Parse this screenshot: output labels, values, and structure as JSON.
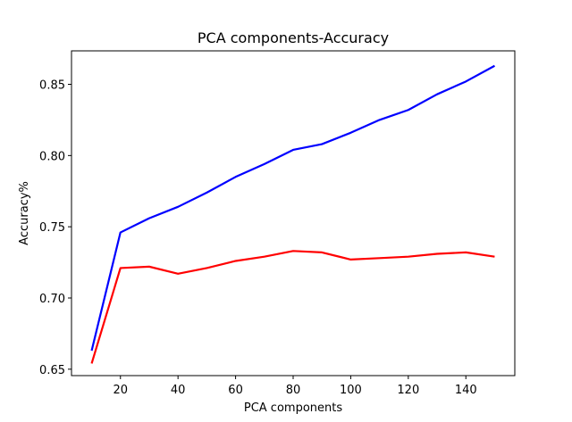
{
  "chart_data": {
    "type": "line",
    "title": "PCA components-Accuracy",
    "xlabel": "PCA components",
    "ylabel": "Accuracy%",
    "xlim": [
      3,
      157
    ],
    "ylim": [
      0.6455,
      0.8735
    ],
    "xticks": [
      20,
      40,
      60,
      80,
      100,
      120,
      140
    ],
    "xtick_labels": [
      "20",
      "40",
      "60",
      "80",
      "100",
      "120",
      "140"
    ],
    "yticks": [
      0.65,
      0.7,
      0.75,
      0.8,
      0.85
    ],
    "ytick_labels": [
      "0.65",
      "0.70",
      "0.75",
      "0.80",
      "0.85"
    ],
    "grid": false,
    "x": [
      10,
      20,
      30,
      40,
      50,
      60,
      70,
      80,
      90,
      100,
      110,
      120,
      130,
      140,
      150
    ],
    "series": [
      {
        "color": "#0000ff",
        "values": [
          0.663,
          0.746,
          0.756,
          0.764,
          0.774,
          0.785,
          0.794,
          0.804,
          0.808,
          0.816,
          0.825,
          0.832,
          0.843,
          0.852,
          0.863
        ]
      },
      {
        "color": "#ff0000",
        "values": [
          0.654,
          0.721,
          0.722,
          0.717,
          0.721,
          0.726,
          0.729,
          0.733,
          0.732,
          0.727,
          0.728,
          0.729,
          0.731,
          0.732,
          0.729
        ]
      }
    ]
  }
}
